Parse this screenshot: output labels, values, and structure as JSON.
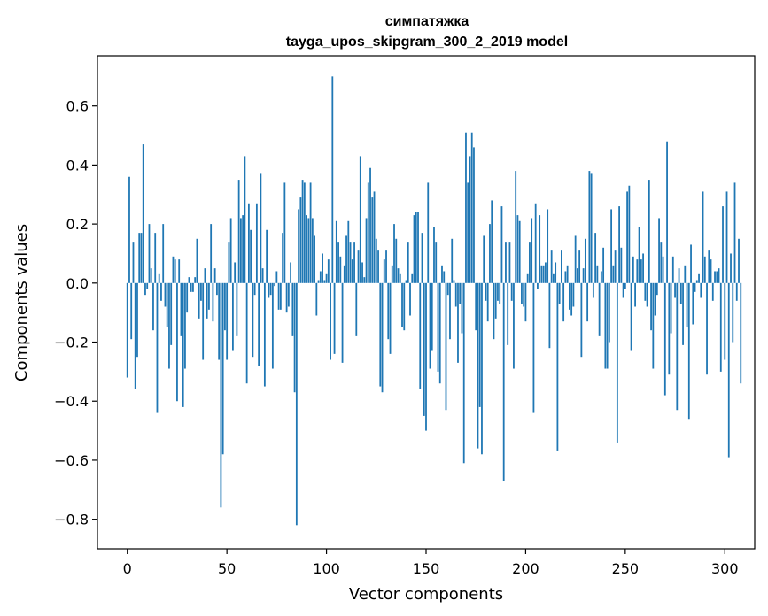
{
  "chart_data": {
    "type": "bar",
    "title": "симпатяжка",
    "subtitle": "tayga_upos_skipgram_300_2_2019 model",
    "xlabel": "Vector components",
    "ylabel": "Components values",
    "xlim": [
      -15,
      315
    ],
    "ylim": [
      -0.9,
      0.77
    ],
    "xticks": [
      0,
      50,
      100,
      150,
      200,
      250,
      300
    ],
    "yticks": [
      -0.8,
      -0.6,
      -0.4,
      -0.2,
      0.0,
      0.2,
      0.4,
      0.6
    ],
    "ytick_labels": [
      "−0.8",
      "−0.6",
      "−0.4",
      "−0.2",
      "0.0",
      "0.2",
      "0.4",
      "0.6"
    ],
    "grid": false,
    "bar_color": "#1f77b4",
    "values": [
      -0.32,
      0.36,
      -0.19,
      0.14,
      -0.36,
      -0.25,
      0.17,
      0.17,
      0.47,
      -0.04,
      -0.02,
      0.2,
      0.05,
      -0.16,
      0.17,
      -0.44,
      0.03,
      -0.06,
      0.2,
      -0.08,
      -0.15,
      -0.29,
      -0.21,
      0.09,
      0.08,
      -0.4,
      0.08,
      -0.18,
      -0.42,
      -0.29,
      -0.1,
      0.02,
      -0.03,
      -0.03,
      0.02,
      0.15,
      -0.12,
      -0.06,
      -0.26,
      0.05,
      -0.12,
      -0.09,
      0.2,
      -0.13,
      0.05,
      -0.04,
      -0.26,
      -0.76,
      -0.58,
      -0.16,
      -0.26,
      0.14,
      0.22,
      -0.23,
      0.07,
      -0.18,
      0.35,
      0.22,
      0.23,
      0.43,
      -0.34,
      0.27,
      0.18,
      -0.25,
      -0.04,
      0.27,
      -0.28,
      0.37,
      0.05,
      -0.35,
      0.18,
      -0.05,
      -0.04,
      -0.29,
      -0.01,
      0.04,
      -0.09,
      -0.09,
      0.17,
      0.34,
      -0.1,
      -0.08,
      0.07,
      -0.18,
      -0.37,
      -0.82,
      0.25,
      0.29,
      0.35,
      0.34,
      0.23,
      0.22,
      0.34,
      0.22,
      0.16,
      -0.11,
      0.01,
      0.04,
      0.1,
      0.01,
      0.03,
      0.08,
      -0.26,
      0.7,
      -0.24,
      0.21,
      0.14,
      0.09,
      -0.27,
      0.06,
      0.16,
      0.21,
      0.14,
      0.08,
      0.14,
      -0.18,
      0.11,
      0.43,
      0.07,
      0.02,
      0.22,
      0.34,
      0.39,
      0.29,
      0.31,
      0.15,
      0.11,
      -0.35,
      -0.37,
      0.08,
      0.11,
      -0.19,
      -0.24,
      0.06,
      0.2,
      0.15,
      0.05,
      0.03,
      -0.15,
      -0.16,
      0.01,
      0.14,
      -0.11,
      0.03,
      0.23,
      0.24,
      0.24,
      -0.36,
      0.17,
      -0.45,
      -0.5,
      0.34,
      -0.29,
      -0.23,
      0.19,
      0.14,
      -0.3,
      -0.34,
      0.06,
      0.04,
      -0.43,
      -0.04,
      -0.19,
      0.15,
      0.01,
      -0.08,
      -0.27,
      -0.07,
      -0.17,
      -0.61,
      0.51,
      0.34,
      0.43,
      0.51,
      0.46,
      -0.16,
      -0.56,
      -0.42,
      -0.58,
      0.16,
      -0.06,
      -0.13,
      0.2,
      0.28,
      -0.19,
      -0.12,
      -0.06,
      -0.07,
      0.26,
      -0.67,
      0.14,
      -0.21,
      0.14,
      -0.06,
      -0.29,
      0.38,
      0.23,
      0.21,
      -0.07,
      -0.08,
      -0.13,
      0.03,
      0.14,
      0.22,
      -0.44,
      0.27,
      -0.02,
      0.23,
      0.06,
      0.06,
      0.07,
      0.25,
      -0.22,
      0.11,
      0.03,
      0.07,
      -0.57,
      -0.07,
      0.11,
      -0.13,
      0.04,
      0.06,
      -0.09,
      -0.11,
      -0.08,
      0.16,
      0.05,
      0.11,
      -0.25,
      0.05,
      0.15,
      -0.13,
      0.38,
      0.37,
      -0.05,
      0.17,
      0.06,
      -0.18,
      0.04,
      0.12,
      -0.29,
      -0.29,
      -0.2,
      0.25,
      0.06,
      0.11,
      -0.54,
      0.26,
      0.12,
      -0.05,
      -0.02,
      0.31,
      0.33,
      -0.23,
      0.09,
      -0.08,
      0.08,
      0.19,
      0.08,
      0.1,
      -0.06,
      -0.08,
      0.35,
      -0.16,
      -0.29,
      -0.11,
      -0.04,
      0.22,
      0.14,
      0.09,
      -0.38,
      0.48,
      -0.31,
      -0.17,
      0.09,
      -0.05,
      -0.43,
      0.05,
      -0.07,
      -0.21,
      0.06,
      -0.15,
      -0.46,
      0.13,
      -0.14,
      -0.03,
      0.01,
      0.03,
      -0.05,
      0.31,
      0.09,
      -0.31,
      0.11,
      0.08,
      -0.06,
      0.04,
      0.04,
      0.05,
      -0.3,
      0.26,
      -0.26,
      0.31,
      -0.59,
      0.1,
      -0.2,
      0.34,
      -0.06,
      0.15,
      -0.34
    ]
  }
}
